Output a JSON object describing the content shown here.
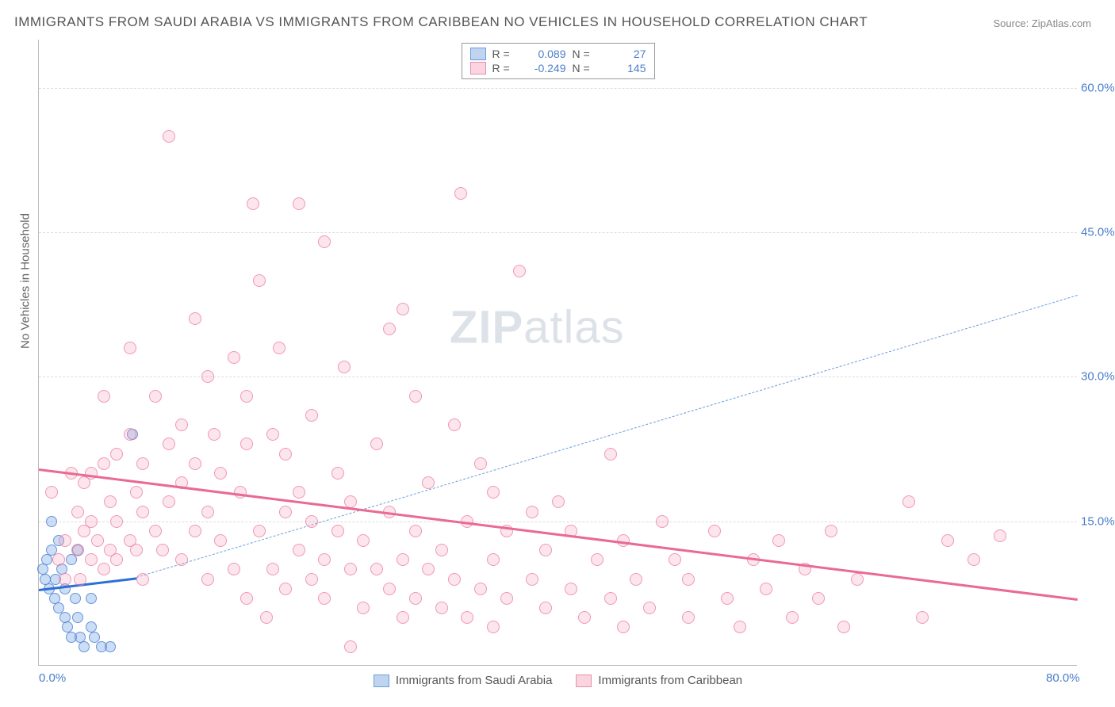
{
  "title": "IMMIGRANTS FROM SAUDI ARABIA VS IMMIGRANTS FROM CARIBBEAN NO VEHICLES IN HOUSEHOLD CORRELATION CHART",
  "source": "Source: ZipAtlas.com",
  "watermark_a": "ZIP",
  "watermark_b": "atlas",
  "y_axis_title": "No Vehicles in Household",
  "chart": {
    "type": "scatter",
    "xlim": [
      0,
      80
    ],
    "ylim": [
      0,
      65
    ],
    "x_ticks": [
      {
        "v": 0,
        "label": "0.0%"
      },
      {
        "v": 80,
        "label": "80.0%"
      }
    ],
    "y_ticks": [
      {
        "v": 15,
        "label": "15.0%"
      },
      {
        "v": 30,
        "label": "30.0%"
      },
      {
        "v": 45,
        "label": "45.0%"
      },
      {
        "v": 60,
        "label": "60.0%"
      }
    ],
    "background_color": "#ffffff",
    "grid_color": "#dddddd",
    "series": [
      {
        "name": "Immigrants from Saudi Arabia",
        "color_fill": "rgba(110,160,225,0.35)",
        "color_stroke": "#5f94d8",
        "marker_size": 14,
        "R": "0.089",
        "N": "27",
        "trend": {
          "x0": 0,
          "y0": 8.0,
          "x1": 7.5,
          "y1": 9.2,
          "color": "#2c6fd6",
          "width": 3,
          "dash": false
        },
        "trend_ext": {
          "x0": 7.5,
          "y0": 9.2,
          "x1": 80,
          "y1": 38.5,
          "color": "#6a9edc",
          "width": 1.5,
          "dash": true
        },
        "points": [
          [
            0.3,
            10
          ],
          [
            0.5,
            9
          ],
          [
            0.6,
            11
          ],
          [
            0.8,
            8
          ],
          [
            1.0,
            12
          ],
          [
            1.0,
            15
          ],
          [
            1.2,
            7
          ],
          [
            1.3,
            9
          ],
          [
            1.5,
            13
          ],
          [
            1.5,
            6
          ],
          [
            1.8,
            10
          ],
          [
            2.0,
            5
          ],
          [
            2.0,
            8
          ],
          [
            2.2,
            4
          ],
          [
            2.5,
            11
          ],
          [
            2.5,
            3
          ],
          [
            2.8,
            7
          ],
          [
            3.0,
            12
          ],
          [
            3.0,
            5
          ],
          [
            3.2,
            3
          ],
          [
            3.5,
            2
          ],
          [
            4.0,
            4
          ],
          [
            4.0,
            7
          ],
          [
            4.3,
            3
          ],
          [
            4.8,
            2
          ],
          [
            5.5,
            2
          ],
          [
            7.2,
            24
          ]
        ]
      },
      {
        "name": "Immigrants from Caribbean",
        "color_fill": "rgba(245,160,185,0.28)",
        "color_stroke": "#e88fae",
        "marker_size": 16,
        "R": "-0.249",
        "N": "145",
        "trend": {
          "x0": 0,
          "y0": 20.5,
          "x1": 80,
          "y1": 7.0,
          "color": "#e96a92",
          "width": 3,
          "dash": false
        },
        "points": [
          [
            1,
            18
          ],
          [
            1.5,
            11
          ],
          [
            2,
            9
          ],
          [
            2,
            13
          ],
          [
            2.5,
            20
          ],
          [
            3,
            12
          ],
          [
            3,
            16
          ],
          [
            3.2,
            9
          ],
          [
            3.5,
            14
          ],
          [
            3.5,
            19
          ],
          [
            4,
            11
          ],
          [
            4,
            15
          ],
          [
            4,
            20
          ],
          [
            4.5,
            13
          ],
          [
            5,
            10
          ],
          [
            5,
            21
          ],
          [
            5,
            28
          ],
          [
            5.5,
            12
          ],
          [
            5.5,
            17
          ],
          [
            6,
            11
          ],
          [
            6,
            15
          ],
          [
            6,
            22
          ],
          [
            7,
            13
          ],
          [
            7,
            24
          ],
          [
            7,
            33
          ],
          [
            7.5,
            12
          ],
          [
            7.5,
            18
          ],
          [
            8,
            9
          ],
          [
            8,
            16
          ],
          [
            8,
            21
          ],
          [
            9,
            14
          ],
          [
            9,
            28
          ],
          [
            9.5,
            12
          ],
          [
            10,
            17
          ],
          [
            10,
            55
          ],
          [
            10,
            23
          ],
          [
            11,
            11
          ],
          [
            11,
            19
          ],
          [
            11,
            25
          ],
          [
            12,
            14
          ],
          [
            12,
            21
          ],
          [
            12,
            36
          ],
          [
            13,
            9
          ],
          [
            13,
            16
          ],
          [
            13,
            30
          ],
          [
            13.5,
            24
          ],
          [
            14,
            13
          ],
          [
            14,
            20
          ],
          [
            15,
            10
          ],
          [
            15,
            32
          ],
          [
            15.5,
            18
          ],
          [
            16,
            7
          ],
          [
            16,
            23
          ],
          [
            16,
            28
          ],
          [
            16.5,
            48
          ],
          [
            17,
            14
          ],
          [
            17,
            40
          ],
          [
            17.5,
            5
          ],
          [
            18,
            10
          ],
          [
            18,
            24
          ],
          [
            18.5,
            33
          ],
          [
            19,
            8
          ],
          [
            19,
            16
          ],
          [
            19,
            22
          ],
          [
            20,
            12
          ],
          [
            20,
            18
          ],
          [
            20,
            48
          ],
          [
            21,
            9
          ],
          [
            21,
            15
          ],
          [
            21,
            26
          ],
          [
            22,
            7
          ],
          [
            22,
            11
          ],
          [
            22,
            44
          ],
          [
            23,
            14
          ],
          [
            23,
            20
          ],
          [
            23.5,
            31
          ],
          [
            24,
            2
          ],
          [
            24,
            10
          ],
          [
            24,
            17
          ],
          [
            25,
            6
          ],
          [
            25,
            13
          ],
          [
            26,
            10
          ],
          [
            26,
            23
          ],
          [
            27,
            8
          ],
          [
            27,
            16
          ],
          [
            27,
            35
          ],
          [
            28,
            5
          ],
          [
            28,
            11
          ],
          [
            28,
            37
          ],
          [
            29,
            7
          ],
          [
            29,
            14
          ],
          [
            29,
            28
          ],
          [
            30,
            10
          ],
          [
            30,
            19
          ],
          [
            31,
            6
          ],
          [
            31,
            12
          ],
          [
            32,
            9
          ],
          [
            32,
            25
          ],
          [
            32.5,
            49
          ],
          [
            33,
            5
          ],
          [
            33,
            15
          ],
          [
            34,
            8
          ],
          [
            34,
            21
          ],
          [
            35,
            4
          ],
          [
            35,
            11
          ],
          [
            35,
            18
          ],
          [
            36,
            7
          ],
          [
            36,
            14
          ],
          [
            37,
            41
          ],
          [
            38,
            9
          ],
          [
            38,
            16
          ],
          [
            39,
            6
          ],
          [
            39,
            12
          ],
          [
            40,
            17
          ],
          [
            41,
            8
          ],
          [
            41,
            14
          ],
          [
            42,
            5
          ],
          [
            43,
            11
          ],
          [
            44,
            7
          ],
          [
            44,
            22
          ],
          [
            45,
            4
          ],
          [
            45,
            13
          ],
          [
            46,
            9
          ],
          [
            47,
            6
          ],
          [
            48,
            15
          ],
          [
            49,
            11
          ],
          [
            50,
            5
          ],
          [
            50,
            9
          ],
          [
            52,
            14
          ],
          [
            53,
            7
          ],
          [
            54,
            4
          ],
          [
            55,
            11
          ],
          [
            56,
            8
          ],
          [
            57,
            13
          ],
          [
            58,
            5
          ],
          [
            59,
            10
          ],
          [
            60,
            7
          ],
          [
            61,
            14
          ],
          [
            62,
            4
          ],
          [
            63,
            9
          ],
          [
            67,
            17
          ],
          [
            68,
            5
          ],
          [
            70,
            13
          ],
          [
            72,
            11
          ],
          [
            74,
            13.5
          ]
        ]
      }
    ]
  },
  "legend_bottom": [
    {
      "swatch": "blue",
      "label": "Immigrants from Saudi Arabia"
    },
    {
      "swatch": "pink",
      "label": "Immigrants from Caribbean"
    }
  ]
}
